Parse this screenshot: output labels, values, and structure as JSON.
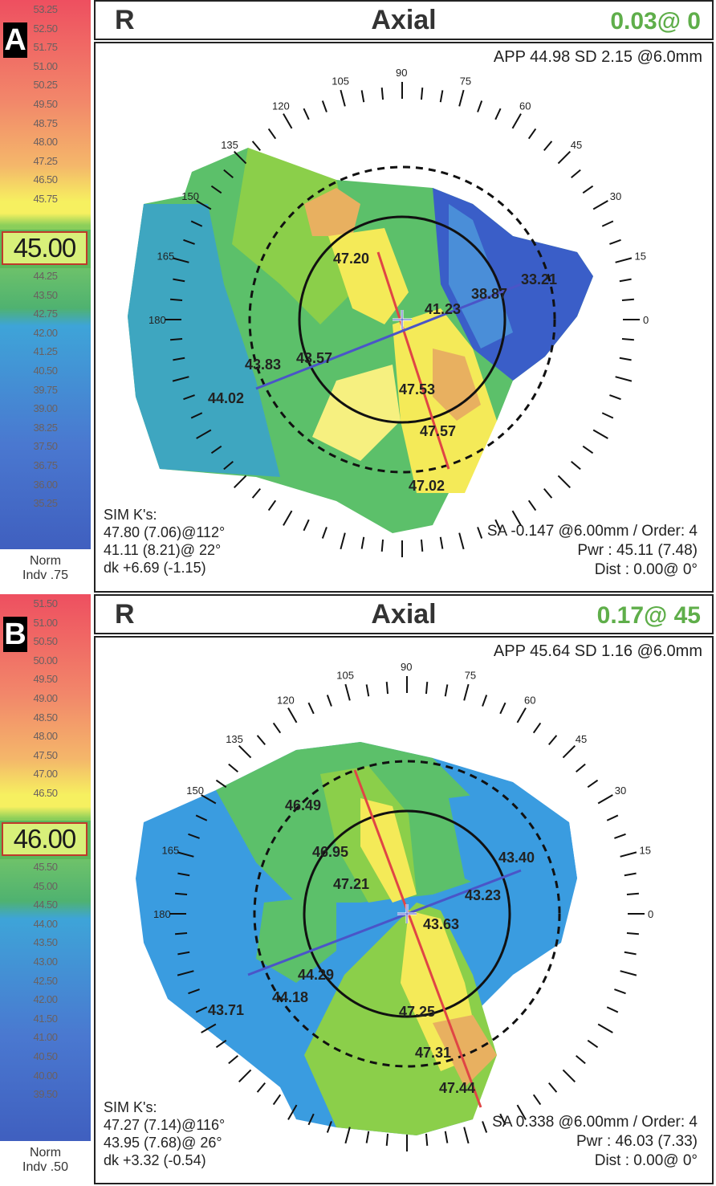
{
  "panels": [
    {
      "letter": "A",
      "eye": "R",
      "title": "Axial",
      "corner_value": "0.03@  0",
      "app_line": "APP 44.98  SD 2.15  @6.0mm",
      "scale_top": [
        "53.25",
        "52.50",
        "51.75",
        "51.00",
        "50.25",
        "49.50",
        "48.75",
        "48.00",
        "47.25",
        "46.50",
        "45.75"
      ],
      "scale_center": "45.00",
      "scale_bottom": [
        "44.25",
        "43.50",
        "42.75",
        "42.00",
        "41.25",
        "40.50",
        "39.75",
        "39.00",
        "38.25",
        "37.50",
        "36.75",
        "36.00",
        "35.25"
      ],
      "scale_foot": [
        "Norm",
        "Indv .75"
      ],
      "sim_k": [
        "SIM K's:",
        "47.80 (7.06)@112°",
        "41.11 (8.21)@ 22°",
        "dk +6.69 (-1.15)"
      ],
      "stats": [
        "SA -0.147 @6.00mm / Order: 4",
        "Pwr :  45.11 (7.48)",
        "Dist :  0.00@  0°"
      ],
      "map_values": [
        "47.20",
        "41.23",
        "38.87",
        "33.21",
        "43.83",
        "43.57",
        "44.02",
        "47.53",
        "47.57",
        "47.02"
      ],
      "angle_labels": [
        "90",
        "105",
        "75",
        "120",
        "60",
        "135",
        "45",
        "150",
        "30",
        "165",
        "15",
        "180",
        "0"
      ],
      "colors": {
        "steep": "#e87a3a",
        "mid": "#f6f05a",
        "flat": "#3a5ec8"
      }
    },
    {
      "letter": "B",
      "eye": "R",
      "title": "Axial",
      "corner_value": "0.17@ 45",
      "app_line": "APP 45.64  SD 1.16  @6.0mm",
      "scale_top": [
        "51.50",
        "51.00",
        "50.50",
        "50.00",
        "49.50",
        "49.00",
        "48.50",
        "48.00",
        "47.50",
        "47.00",
        "46.50"
      ],
      "scale_center": "46.00",
      "scale_bottom": [
        "45.50",
        "45.00",
        "44.50",
        "44.00",
        "43.50",
        "43.00",
        "42.50",
        "42.00",
        "41.50",
        "41.00",
        "40.50",
        "40.00",
        "39.50"
      ],
      "scale_foot": [
        "Norm",
        "Indv .50"
      ],
      "sim_k": [
        "SIM K's:",
        "47.27 (7.14)@116°",
        "43.95 (7.68)@ 26°",
        "dk +3.32 (-0.54)"
      ],
      "stats": [
        "SA  0.338 @6.00mm / Order: 4",
        "Pwr :  46.03 (7.33)",
        "Dist :  0.00@  0°"
      ],
      "map_values": [
        "46.49",
        "46.95",
        "47.21",
        "43.40",
        "43.23",
        "43.63",
        "44.29",
        "43.71",
        "44.18",
        "47.25",
        "47.31",
        "47.44"
      ],
      "angle_labels": [
        "90",
        "105",
        "75",
        "120",
        "60",
        "135",
        "45",
        "150",
        "30",
        "165",
        "15",
        "180",
        "0"
      ],
      "colors": {
        "steep": "#e87a3a",
        "mid": "#f6f05a",
        "flat": "#3a5ec8"
      }
    }
  ]
}
